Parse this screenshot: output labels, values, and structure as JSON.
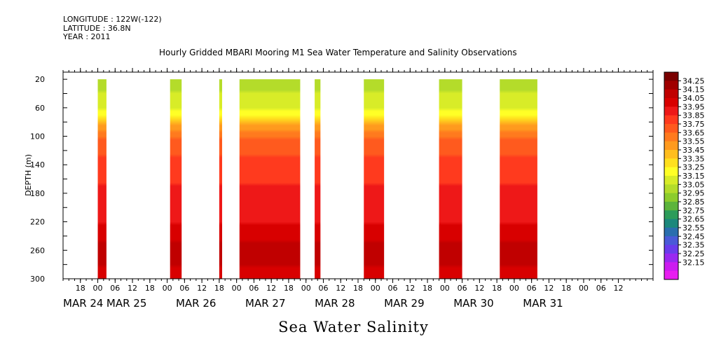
{
  "header": {
    "longitude": "LONGITUDE : 122W(-122)",
    "latitude": "LATITUDE : 36.8N",
    "year": "YEAR : 2011"
  },
  "chart_data": {
    "type": "heatmap",
    "title": "Hourly Gridded MBARI Mooring M1 Sea Water Temperature and Salinity Observations",
    "xlabel": "Sea Water Salinity",
    "ylabel": "DEPTH (m)",
    "ylim": [
      300,
      10
    ],
    "y_ticks": [
      20,
      60,
      100,
      140,
      180,
      220,
      260,
      300
    ],
    "x_range_hours": [
      -12,
      192
    ],
    "x_hour_tick_labels": [
      "18",
      "00",
      "06",
      "12",
      "18",
      "00",
      "06",
      "12",
      "18",
      "00",
      "06",
      "12",
      "18",
      "00",
      "06",
      "12",
      "18",
      "00",
      "06",
      "12",
      "18",
      "00",
      "06",
      "12",
      "18",
      "00",
      "06",
      "12",
      "18",
      "00",
      "06",
      "12"
    ],
    "x_hour_tick_positions_h": [
      -6,
      0,
      6,
      12,
      18,
      24,
      30,
      36,
      42,
      48,
      54,
      60,
      66,
      72,
      78,
      84,
      90,
      96,
      102,
      108,
      114,
      120,
      126,
      132,
      138,
      144,
      150,
      156,
      162,
      168,
      174,
      180
    ],
    "date_labels": [
      "MAR 24",
      "MAR 25",
      "MAR 26",
      "MAR 27",
      "MAR 28",
      "MAR 29",
      "MAR 30",
      "MAR 31"
    ],
    "date_label_hours": [
      -12,
      3,
      27,
      51,
      75,
      99,
      123,
      147
    ],
    "colorbar": {
      "levels": [
        34.25,
        34.15,
        34.05,
        33.95,
        33.85,
        33.75,
        33.65,
        33.55,
        33.45,
        33.35,
        33.25,
        33.15,
        33.05,
        32.95,
        32.85,
        32.75,
        32.65,
        32.55,
        32.45,
        32.35,
        32.25,
        32.15
      ],
      "colors": [
        "#7a0000",
        "#a00000",
        "#c00000",
        "#d80000",
        "#ee1818",
        "#ff3a1e",
        "#ff5a1e",
        "#ff7a1e",
        "#ff9a1e",
        "#ffbe1e",
        "#ffe01e",
        "#ffff26",
        "#d8ec28",
        "#b4dc2a",
        "#8ccc2c",
        "#5cb43c",
        "#2c9c5a",
        "#1c887c",
        "#2a6eae",
        "#4a5ad8",
        "#6a3cec",
        "#9a28f0",
        "#cc1cf0",
        "#e81ef0"
      ]
    },
    "data_segments_hours": [
      [
        0,
        3
      ],
      [
        25,
        29
      ],
      [
        42,
        43
      ],
      [
        49,
        70
      ],
      [
        75,
        77
      ],
      [
        92,
        99
      ],
      [
        118,
        126
      ],
      [
        139,
        152
      ]
    ],
    "profile_at_depth": [
      {
        "depth": 20,
        "salinity": 33.1
      },
      {
        "depth": 60,
        "salinity": 33.2
      },
      {
        "depth": 80,
        "salinity": 33.5
      },
      {
        "depth": 100,
        "salinity": 33.75
      },
      {
        "depth": 140,
        "salinity": 33.9
      },
      {
        "depth": 180,
        "salinity": 33.98
      },
      {
        "depth": 220,
        "salinity": 34.05
      },
      {
        "depth": 260,
        "salinity": 34.2
      },
      {
        "depth": 300,
        "salinity": 34.1
      }
    ],
    "grid": false,
    "legend": "colorbar-right"
  }
}
